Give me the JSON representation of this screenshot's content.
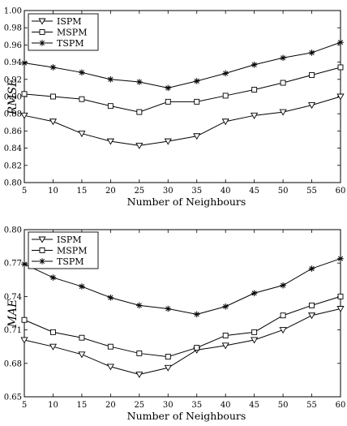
{
  "chart_data": [
    {
      "type": "line",
      "x": [
        5,
        10,
        15,
        20,
        25,
        30,
        35,
        40,
        45,
        50,
        55,
        60
      ],
      "xlabel": "Number of Neighbours",
      "ylabel": "RMSE",
      "xlim": [
        5,
        60
      ],
      "ylim": [
        0.8,
        1.0
      ],
      "yticks": [
        "0.80",
        "0.82",
        "0.84",
        "0.86",
        "0.88",
        "0.90",
        "0.92",
        "0.94",
        "0.96",
        "0.98",
        "1.00"
      ],
      "ytick_values": [
        0.8,
        0.82,
        0.84,
        0.86,
        0.88,
        0.9,
        0.92,
        0.94,
        0.96,
        0.98,
        1.0
      ],
      "xticks": [
        "5",
        "10",
        "15",
        "20",
        "25",
        "30",
        "35",
        "40",
        "45",
        "50",
        "55",
        "60"
      ],
      "legend_position": "top-left",
      "grid": false,
      "series": [
        {
          "name": "ISPM",
          "marker": "triangle-down",
          "values": [
            0.878,
            0.871,
            0.857,
            0.848,
            0.843,
            0.848,
            0.854,
            0.871,
            0.878,
            0.882,
            0.89,
            0.9
          ]
        },
        {
          "name": "MSPM",
          "marker": "square",
          "values": [
            0.903,
            0.9,
            0.897,
            0.889,
            0.882,
            0.894,
            0.894,
            0.901,
            0.908,
            0.916,
            0.925,
            0.934
          ]
        },
        {
          "name": "TSPM",
          "marker": "star",
          "values": [
            0.939,
            0.934,
            0.928,
            0.92,
            0.917,
            0.91,
            0.918,
            0.927,
            0.937,
            0.945,
            0.951,
            0.963
          ]
        }
      ]
    },
    {
      "type": "line",
      "x": [
        5,
        10,
        15,
        20,
        25,
        30,
        35,
        40,
        45,
        50,
        55,
        60
      ],
      "xlabel": "Number of Neighbours",
      "ylabel": "MAE",
      "xlim": [
        5,
        60
      ],
      "ylim": [
        0.65,
        0.8
      ],
      "yticks": [
        "0.65",
        "0.68",
        "0.71",
        "0.74",
        "0.77",
        "0.80"
      ],
      "ytick_values": [
        0.65,
        0.68,
        0.71,
        0.74,
        0.77,
        0.8
      ],
      "xticks": [
        "5",
        "10",
        "15",
        "20",
        "25",
        "30",
        "35",
        "40",
        "45",
        "50",
        "55",
        "60"
      ],
      "legend_position": "top-left",
      "grid": false,
      "series": [
        {
          "name": "ISPM",
          "marker": "triangle-down",
          "values": [
            0.701,
            0.695,
            0.688,
            0.677,
            0.67,
            0.676,
            0.692,
            0.696,
            0.701,
            0.71,
            0.723,
            0.729
          ]
        },
        {
          "name": "MSPM",
          "marker": "square",
          "values": [
            0.719,
            0.708,
            0.703,
            0.695,
            0.689,
            0.686,
            0.694,
            0.705,
            0.708,
            0.723,
            0.732,
            0.74
          ]
        },
        {
          "name": "TSPM",
          "marker": "star",
          "values": [
            0.769,
            0.757,
            0.749,
            0.739,
            0.732,
            0.729,
            0.724,
            0.731,
            0.743,
            0.75,
            0.765,
            0.774
          ]
        }
      ]
    }
  ]
}
